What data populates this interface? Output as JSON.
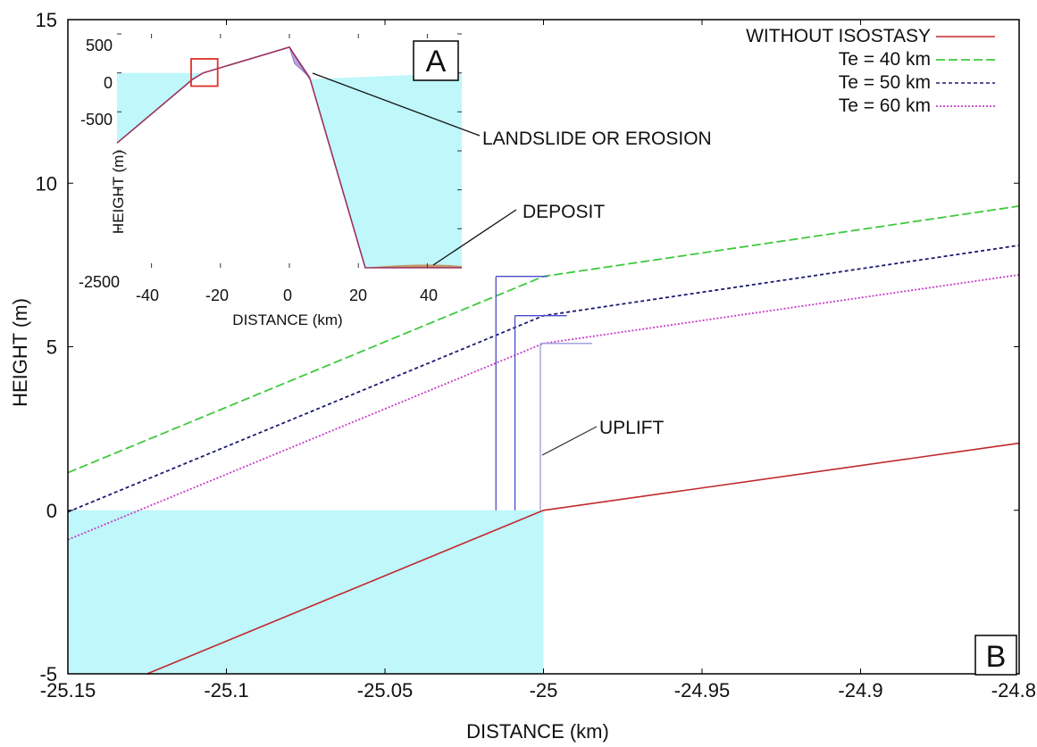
{
  "chart_data": [
    {
      "type": "line",
      "panel_label": "B",
      "xlabel": "DISTANCE (km)",
      "ylabel": "HEIGHT (m)",
      "xlim": [
        -25.15,
        -24.85
      ],
      "ylim": [
        -5,
        15
      ],
      "x_ticks": [
        -25.15,
        -25.1,
        -25.05,
        -25,
        -24.95,
        -24.9,
        -24.85
      ],
      "x_tick_labels": [
        "-25.15",
        "-25.1",
        "-25.05",
        "-25",
        "-24.95",
        "-24.9",
        "-24.85"
      ],
      "y_ticks": [
        -5,
        0,
        5,
        10,
        15
      ],
      "y_tick_labels": [
        "-5",
        "0",
        "5",
        "10",
        "15"
      ],
      "grid": false,
      "legend_position": "top-right",
      "sea": {
        "color": "#bff7fa",
        "level": 0,
        "x_end": -25.0
      },
      "series": [
        {
          "name": "WITHOUT ISOSTASY",
          "color": "#c0282d",
          "dash": "solid",
          "x": [
            -25.125,
            -25.0,
            -24.85
          ],
          "y": [
            -5.0,
            0.0,
            2.05
          ]
        },
        {
          "name": "Te = 40 km",
          "color": "#3ec93e",
          "dash": "long-dash",
          "x": [
            -25.15,
            -25.0,
            -24.85
          ],
          "y": [
            1.15,
            7.15,
            9.3
          ]
        },
        {
          "name": "Te = 50 km",
          "color": "#1a1a6e",
          "dash": "short-dash",
          "x": [
            -25.15,
            -25.0,
            -24.85
          ],
          "y": [
            -0.05,
            5.95,
            8.1
          ]
        },
        {
          "name": "Te = 60 km",
          "color": "#c83cc8",
          "dash": "dotted",
          "x": [
            -25.15,
            -25.0,
            -24.85
          ],
          "y": [
            -0.9,
            5.1,
            7.2
          ]
        }
      ],
      "uplift_bars": [
        {
          "x": -25.015,
          "top": 7.15,
          "color": "#4a4acc"
        },
        {
          "x": -25.009,
          "top": 5.95,
          "color": "#4a4acc"
        },
        {
          "x": -25.001,
          "top": 5.1,
          "color": "#9a9ad8"
        }
      ],
      "annotations": [
        "UPLIFT"
      ]
    },
    {
      "type": "line",
      "panel_label": "A",
      "xlabel": "DISTANCE (km)",
      "ylabel": "HEIGHT (m)",
      "xlim": [
        -50,
        50
      ],
      "ylim": [
        -2500,
        500
      ],
      "x_tick_labels": [
        "-40",
        "-20",
        "0",
        "20",
        "40"
      ],
      "y_tick_labels": [
        "500",
        "0",
        "-500",
        "-2500"
      ],
      "sea": {
        "color": "#bff7fa",
        "level": 0
      },
      "profile": {
        "x": [
          -50,
          -28,
          -25,
          0,
          6,
          22,
          50
        ],
        "y": [
          -900,
          -80,
          0,
          330,
          -80,
          -2500,
          -2500
        ]
      },
      "annotations": [
        "LANDSLIDE OR EROSION",
        "DEPOSIT"
      ]
    }
  ]
}
